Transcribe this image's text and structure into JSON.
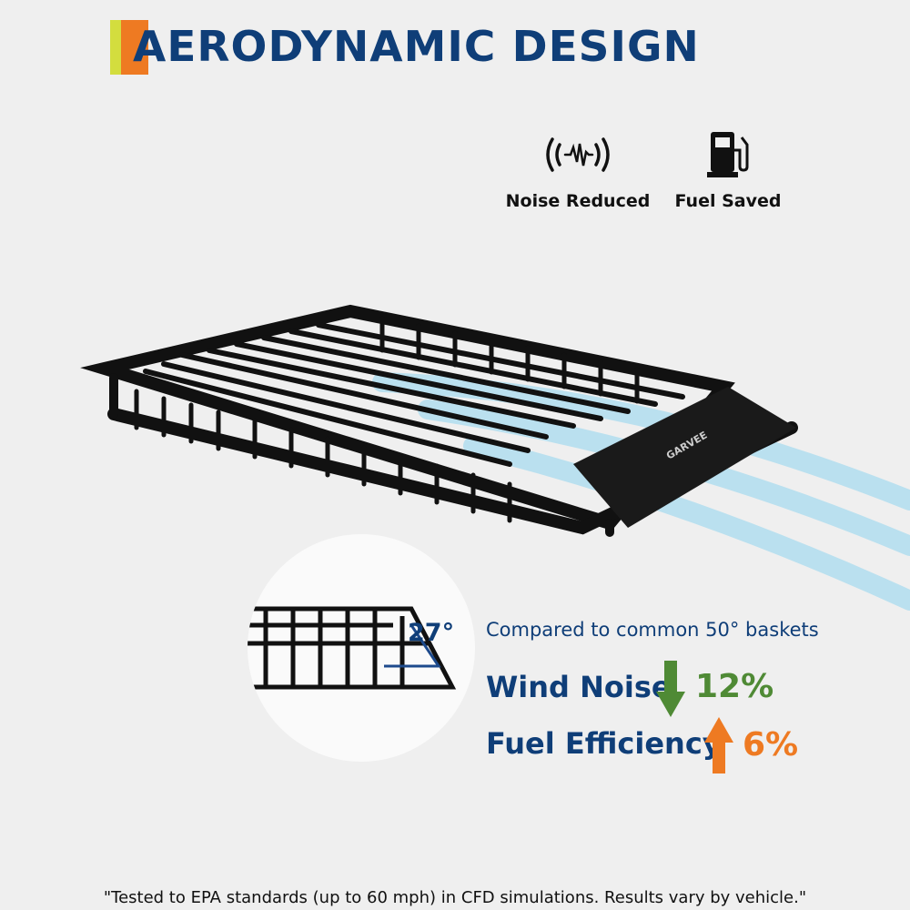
{
  "header": {
    "title": "AERODYNAMIC DESIGN",
    "accent_colors": [
      "#d3dd3e",
      "#ee7a22"
    ],
    "title_color": "#0f3e78"
  },
  "features": [
    {
      "icon": "sound-wave-icon",
      "label": "Noise Reduced"
    },
    {
      "icon": "fuel-pump-icon",
      "label": "Fuel Saved"
    }
  ],
  "product": {
    "brand_logo": "GARVEE",
    "angle": "27°"
  },
  "comparison": {
    "caption": "Compared to common 50° baskets",
    "metrics": [
      {
        "label": "Wind Noise",
        "direction": "down",
        "value": "12%",
        "color": "#4f8a35"
      },
      {
        "label": "Fuel Efficiency",
        "direction": "up",
        "value": "6%",
        "color": "#ee7a22"
      }
    ]
  },
  "footnote": "\"Tested to EPA standards (up to 60 mph) in CFD simulations. Results vary by vehicle.\""
}
